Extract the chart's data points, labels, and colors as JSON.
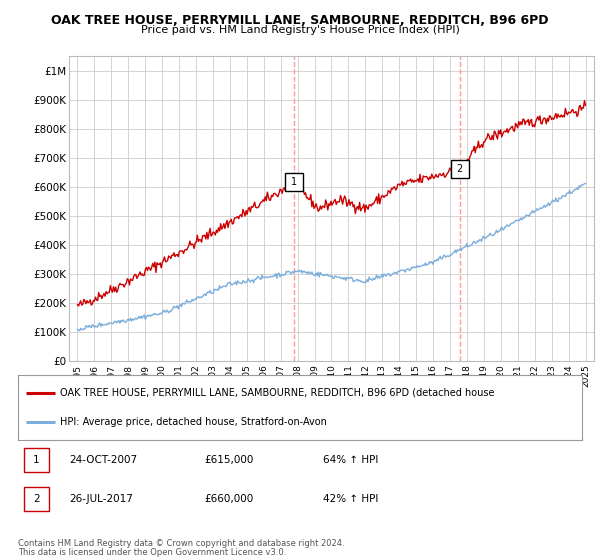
{
  "title": "OAK TREE HOUSE, PERRYMILL LANE, SAMBOURNE, REDDITCH, B96 6PD",
  "subtitle": "Price paid vs. HM Land Registry's House Price Index (HPI)",
  "ylabel_ticks": [
    "£0",
    "£100K",
    "£200K",
    "£300K",
    "£400K",
    "£500K",
    "£600K",
    "£700K",
    "£800K",
    "£900K",
    "£1M"
  ],
  "ytick_values": [
    0,
    100000,
    200000,
    300000,
    400000,
    500000,
    600000,
    700000,
    800000,
    900000,
    1000000
  ],
  "xlim": [
    1994.5,
    2025.5
  ],
  "ylim": [
    0,
    1050000
  ],
  "sale1_x": 2007.81,
  "sale1_y": 615000,
  "sale1_label": "1",
  "sale2_x": 2017.56,
  "sale2_y": 660000,
  "sale2_label": "2",
  "red_line_color": "#cc0000",
  "blue_line_color": "#7aaddc",
  "dashed_line_color": "#ff9999",
  "legend_red_label": "OAK TREE HOUSE, PERRYMILL LANE, SAMBOURNE, REDDITCH, B96 6PD (detached house",
  "legend_blue_label": "HPI: Average price, detached house, Stratford-on-Avon",
  "table_row1": [
    "1",
    "24-OCT-2007",
    "£615,000",
    "64% ↑ HPI"
  ],
  "table_row2": [
    "2",
    "26-JUL-2017",
    "£660,000",
    "42% ↑ HPI"
  ],
  "footnote1": "Contains HM Land Registry data © Crown copyright and database right 2024.",
  "footnote2": "This data is licensed under the Open Government Licence v3.0.",
  "bg_color": "#ffffff",
  "plot_bg_color": "#ffffff",
  "grid_color": "#cccccc"
}
